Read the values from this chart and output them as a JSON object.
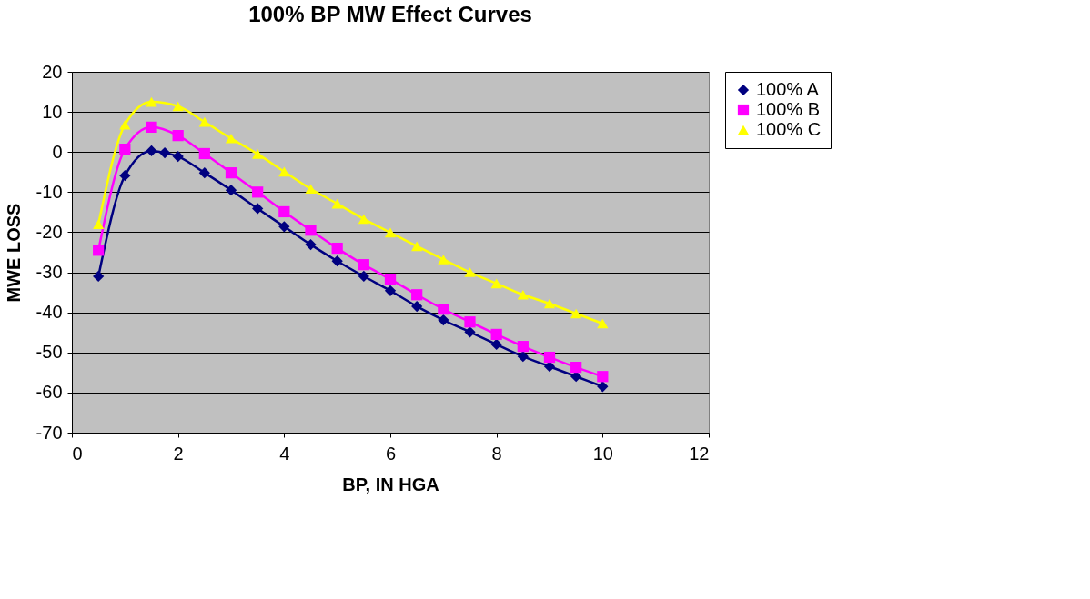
{
  "chart_data": {
    "type": "line",
    "title": "100% BP MW Effect Curves",
    "xlabel": "BP, IN HGA",
    "ylabel": "MWE LOSS",
    "xlim": [
      0,
      12
    ],
    "xticks": [
      0,
      2,
      4,
      6,
      8,
      10,
      12
    ],
    "ylim": [
      -70,
      20
    ],
    "yticks": [
      -70,
      -60,
      -50,
      -40,
      -30,
      -20,
      -10,
      0,
      10,
      20
    ],
    "grid": "y",
    "legend": "right",
    "line_style": "solid",
    "series": [
      {
        "name": "100% A",
        "color": "#000080",
        "marker": "diamond",
        "x": [
          0.5,
          1,
          1.5,
          1.75,
          2,
          2.5,
          3,
          3.5,
          4,
          4.5,
          5,
          5.5,
          6,
          6.5,
          7,
          7.5,
          8,
          8.5,
          9,
          9.5,
          10
        ],
        "values": [
          -31,
          -5.9,
          0.3,
          -0.2,
          -1.1,
          -5.2,
          -9.5,
          -14.1,
          -18.6,
          -23.1,
          -27.2,
          -31,
          -34.6,
          -38.5,
          -41.9,
          -44.9,
          -48,
          -51,
          -53.5,
          -56,
          -58.5
        ]
      },
      {
        "name": "100% B",
        "color": "#ff00ff",
        "marker": "square",
        "x": [
          0.5,
          1,
          1.5,
          2,
          2.5,
          3,
          3.5,
          4,
          4.5,
          5,
          5.5,
          6,
          6.5,
          7,
          7.5,
          8,
          8.5,
          9,
          9.5,
          10
        ],
        "values": [
          -24.5,
          0.7,
          6.2,
          4.1,
          -0.4,
          -5.2,
          -10,
          -14.9,
          -19.5,
          -24,
          -28.1,
          -31.7,
          -35.6,
          -39.2,
          -42.4,
          -45.5,
          -48.5,
          -51.2,
          -53.7,
          -56
        ]
      },
      {
        "name": "100% C",
        "color": "#ffff00",
        "marker": "triangle",
        "x": [
          0.5,
          1,
          1.5,
          2,
          2.5,
          3,
          3.5,
          4,
          4.5,
          5,
          5.5,
          6,
          6.5,
          7,
          7.5,
          8,
          8.5,
          9,
          9.5,
          10
        ],
        "values": [
          -18,
          6.8,
          12.5,
          11.4,
          7.5,
          3.4,
          -0.5,
          -4.9,
          -9.2,
          -12.9,
          -16.7,
          -20.1,
          -23.5,
          -26.8,
          -30,
          -32.8,
          -35.6,
          -37.8,
          -40.3,
          -42.8
        ]
      }
    ]
  }
}
